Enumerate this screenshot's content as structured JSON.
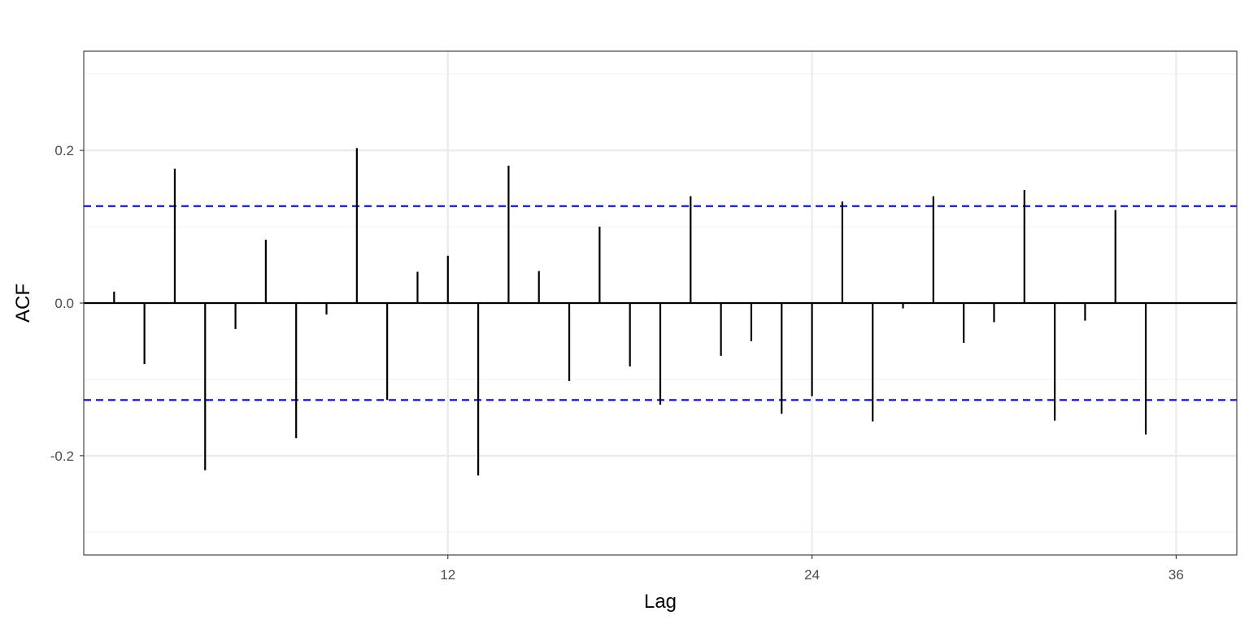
{
  "chart_data": {
    "type": "bar",
    "subtype": "acf-correlogram",
    "xlabel": "Lag",
    "ylabel": "ACF",
    "xlim": [
      0.0,
      38.0
    ],
    "ylim": [
      -0.33,
      0.33
    ],
    "x_ticks": [
      12,
      24,
      36
    ],
    "x_tick_labels": [
      "12",
      "24",
      "36"
    ],
    "y_ticks": [
      -0.2,
      0.0,
      0.2
    ],
    "y_tick_labels": [
      "-0.2",
      "0.0",
      "0.2"
    ],
    "grid": true,
    "legend": "none",
    "confidence_bound": 0.127,
    "lags": [
      1,
      2,
      3,
      4,
      5,
      6,
      7,
      8,
      9,
      10,
      11,
      12,
      13,
      14,
      15,
      16,
      17,
      18,
      19,
      20,
      21,
      22,
      23,
      24,
      25,
      26,
      27,
      28,
      29,
      30,
      31,
      32,
      33,
      34,
      35,
      36
    ],
    "values": [
      0.015,
      -0.08,
      0.176,
      -0.219,
      -0.034,
      0.083,
      -0.177,
      -0.015,
      0.203,
      -0.127,
      0.041,
      0.062,
      -0.226,
      0.18,
      0.042,
      -0.102,
      0.1,
      -0.083,
      -0.133,
      0.14,
      -0.069,
      -0.05,
      -0.145,
      -0.122,
      0.133,
      -0.155,
      -0.007,
      0.14,
      -0.052,
      -0.025,
      0.148,
      -0.154,
      -0.023,
      0.122,
      -0.172,
      0.0
    ],
    "colors": {
      "bars": "#000000",
      "confidence_lines": "#0000ff",
      "grid_major": "#ebebeb",
      "grid_minor": "#f3f3f3",
      "panel_border": "#333333",
      "tick_label": "#4d4d4d"
    }
  }
}
